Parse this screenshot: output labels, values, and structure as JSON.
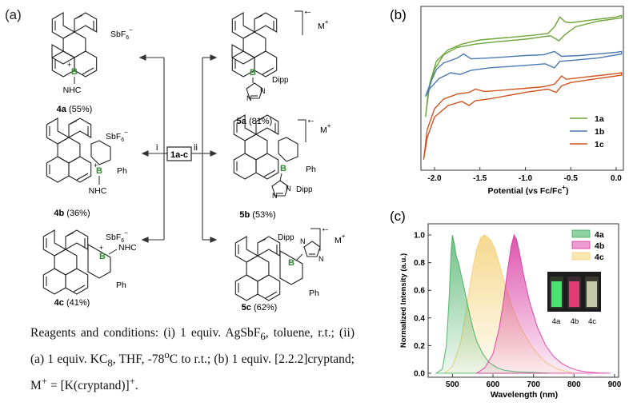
{
  "panel_a": {
    "label": "(a)",
    "center_box": "1a-c",
    "arrow_i": "i",
    "arrow_ii": "ii",
    "compounds": [
      {
        "id": "4a",
        "yield": "(55%)",
        "counterion": "SbF",
        "counterion_sub": "6",
        "counterion_sup": "−",
        "ligand": "NHC"
      },
      {
        "id": "4b",
        "yield": "(36%)",
        "counterion": "SbF",
        "counterion_sub": "6",
        "counterion_sup": "−",
        "ligand": "NHC",
        "substituent": "Ph"
      },
      {
        "id": "4c",
        "yield": "(41%)",
        "counterion": "SbF",
        "counterion_sub": "6",
        "counterion_sup": "−",
        "ligand": "NHC",
        "substituent": "Ph"
      },
      {
        "id": "5a",
        "yield": "(81%)",
        "charge": "•−",
        "cation": "M",
        "cation_sup": "+",
        "ligand": "Dipp"
      },
      {
        "id": "5b",
        "yield": "(53%)",
        "charge": "•−",
        "cation": "M",
        "cation_sup": "+",
        "ligand": "Dipp",
        "substituent": "Ph"
      },
      {
        "id": "5c",
        "yield": "(62%)",
        "charge": "•−",
        "cation": "M",
        "cation_sup": "+",
        "ligand": "Dipp",
        "substituent": "Ph"
      }
    ],
    "atoms": {
      "boron": "B",
      "plus": "+",
      "nitrogen": "N"
    },
    "conditions": {
      "line1": "Reagents and conditions: (i) 1 equiv. AgSbF",
      "line1_sub": "6",
      "line1_end": ",",
      "line2": "toluene, r.t.; (ii) (a) 1 equiv. KC",
      "line2_sub": "8",
      "line2_mid": ", THF, -78",
      "line2_sup": "o",
      "line2_end": "C to r.t.;",
      "line3": "(b) 1 equiv. [2.2.2]cryptand; M",
      "line3_sup": "+",
      "line3_mid": " = [K(cryptand)]",
      "line3_sup2": "+",
      "line3_end": "."
    }
  },
  "panel_b": {
    "label": "(b)"
  },
  "panel_c": {
    "label": "(c)",
    "vial_labels": [
      "4a",
      "4b",
      "4c"
    ]
  },
  "chart_data": [
    {
      "type": "line",
      "panel": "(b)",
      "xlabel": "Potential (vs Fc/Fc",
      "xlabel_sup": "+",
      "xlabel_end": ")",
      "ylabel": "",
      "xlim": [
        -2.15,
        0.08
      ],
      "xticks": [
        -2.0,
        -1.5,
        -1.0,
        -0.5,
        0.0
      ],
      "xtick_labels": [
        "-2.0",
        "-1.5",
        "-1.0",
        "-0.5",
        "0.0"
      ],
      "yticks_shown": false,
      "legend_position": "right",
      "colors": {
        "1a": "#6ea43a",
        "1b": "#4a79b0",
        "1c": "#d1541f"
      },
      "series": [
        {
          "name": "1a",
          "loop": [
            [
              -2.1,
              -0.8
            ],
            [
              -2.05,
              -0.38
            ],
            [
              -1.98,
              -0.12
            ],
            [
              -1.85,
              0.02
            ],
            [
              -1.7,
              0.09
            ],
            [
              -1.5,
              0.14
            ],
            [
              -1.2,
              0.17
            ],
            [
              -0.9,
              0.2
            ],
            [
              -0.75,
              0.22
            ],
            [
              -0.68,
              0.3
            ],
            [
              -0.62,
              0.42
            ],
            [
              -0.56,
              0.36
            ],
            [
              -0.5,
              0.35
            ],
            [
              -0.3,
              0.38
            ],
            [
              0.0,
              0.42
            ],
            [
              0.06,
              0.44
            ],
            [
              0.06,
              0.41
            ],
            [
              -0.2,
              0.37
            ],
            [
              -0.45,
              0.3
            ],
            [
              -0.57,
              0.2
            ],
            [
              -0.63,
              0.13
            ],
            [
              -0.72,
              0.19
            ],
            [
              -0.8,
              0.18
            ],
            [
              -1.0,
              0.15
            ],
            [
              -1.3,
              0.12
            ],
            [
              -1.55,
              0.09
            ],
            [
              -1.75,
              0.05
            ],
            [
              -1.9,
              -0.04
            ],
            [
              -2.0,
              -0.22
            ],
            [
              -2.07,
              -0.5
            ],
            [
              -2.1,
              -0.8
            ]
          ]
        },
        {
          "name": "1b",
          "loop": [
            [
              -2.1,
              -0.55
            ],
            [
              -2.05,
              -0.4
            ],
            [
              -1.98,
              -0.22
            ],
            [
              -1.9,
              -0.14
            ],
            [
              -1.75,
              -0.08
            ],
            [
              -1.68,
              -0.03
            ],
            [
              -1.6,
              -0.09
            ],
            [
              -1.4,
              -0.08
            ],
            [
              -1.0,
              -0.05
            ],
            [
              -0.8,
              -0.04
            ],
            [
              -0.68,
              0.0
            ],
            [
              -0.6,
              -0.06
            ],
            [
              -0.4,
              -0.05
            ],
            [
              0.0,
              -0.01
            ],
            [
              0.06,
              0.0
            ],
            [
              0.06,
              -0.03
            ],
            [
              -0.2,
              -0.08
            ],
            [
              -0.5,
              -0.11
            ],
            [
              -0.62,
              -0.12
            ],
            [
              -0.68,
              -0.2
            ],
            [
              -0.78,
              -0.15
            ],
            [
              -1.0,
              -0.17
            ],
            [
              -1.4,
              -0.2
            ],
            [
              -1.6,
              -0.23
            ],
            [
              -1.72,
              -0.28
            ],
            [
              -1.82,
              -0.26
            ],
            [
              -1.95,
              -0.33
            ],
            [
              -2.05,
              -0.45
            ],
            [
              -2.1,
              -0.55
            ]
          ]
        },
        {
          "name": "1c",
          "loop": [
            [
              -2.12,
              -1.32
            ],
            [
              -2.08,
              -0.95
            ],
            [
              -2.0,
              -0.7
            ],
            [
              -1.9,
              -0.58
            ],
            [
              -1.75,
              -0.52
            ],
            [
              -1.62,
              -0.5
            ],
            [
              -1.55,
              -0.46
            ],
            [
              -1.45,
              -0.49
            ],
            [
              -1.0,
              -0.45
            ],
            [
              -0.8,
              -0.43
            ],
            [
              -0.68,
              -0.4
            ],
            [
              -0.6,
              -0.3
            ],
            [
              -0.55,
              -0.34
            ],
            [
              -0.4,
              -0.32
            ],
            [
              0.0,
              -0.27
            ],
            [
              0.06,
              -0.26
            ],
            [
              0.06,
              -0.29
            ],
            [
              -0.2,
              -0.33
            ],
            [
              -0.5,
              -0.38
            ],
            [
              -0.6,
              -0.42
            ],
            [
              -0.66,
              -0.5
            ],
            [
              -0.75,
              -0.46
            ],
            [
              -1.0,
              -0.5
            ],
            [
              -1.4,
              -0.58
            ],
            [
              -1.55,
              -0.6
            ],
            [
              -1.62,
              -0.66
            ],
            [
              -1.7,
              -0.61
            ],
            [
              -1.85,
              -0.66
            ],
            [
              -2.0,
              -0.8
            ],
            [
              -2.08,
              -1.05
            ],
            [
              -2.12,
              -1.32
            ]
          ]
        }
      ]
    },
    {
      "type": "area",
      "panel": "(c)",
      "xlabel": "Wavelength (nm)",
      "ylabel": "Normalized Intensity (a.u.)",
      "xlim": [
        440,
        910
      ],
      "ylim": [
        0.0,
        1.05
      ],
      "xticks": [
        500,
        600,
        700,
        800,
        900
      ],
      "yticks": [
        0.0,
        0.2,
        0.4,
        0.6,
        0.8,
        1.0
      ],
      "ytick_labels": [
        "0.0",
        "0.2",
        "0.4",
        "0.6",
        "0.8",
        "1.0"
      ],
      "legend_position": "top-right",
      "series": [
        {
          "name": "4a",
          "color": "#3cab5a",
          "x": [
            460,
            475,
            485,
            492,
            497,
            500,
            505,
            510,
            515,
            520,
            530,
            540,
            550,
            560,
            575,
            590,
            610,
            630,
            660,
            700,
            740
          ],
          "y": [
            0,
            0.03,
            0.2,
            0.55,
            0.9,
            1.0,
            0.93,
            0.84,
            0.8,
            0.73,
            0.6,
            0.46,
            0.33,
            0.23,
            0.14,
            0.08,
            0.04,
            0.02,
            0.01,
            0.005,
            0
          ]
        },
        {
          "name": "4b",
          "color": "#d8359f",
          "x": [
            560,
            580,
            600,
            615,
            625,
            635,
            645,
            652,
            658,
            665,
            675,
            690,
            710,
            730,
            750,
            770,
            790,
            810,
            830,
            860,
            890
          ],
          "y": [
            0,
            0.04,
            0.14,
            0.32,
            0.5,
            0.72,
            0.92,
            1.0,
            0.97,
            0.88,
            0.72,
            0.52,
            0.33,
            0.2,
            0.12,
            0.07,
            0.04,
            0.02,
            0.01,
            0.003,
            0
          ]
        },
        {
          "name": "4c",
          "color": "#f4d27a",
          "x": [
            480,
            500,
            520,
            535,
            550,
            560,
            570,
            578,
            585,
            595,
            605,
            615,
            630,
            650,
            670,
            690,
            710,
            730,
            760,
            800
          ],
          "y": [
            0,
            0.05,
            0.22,
            0.48,
            0.76,
            0.9,
            0.98,
            1.0,
            0.99,
            0.96,
            0.9,
            0.8,
            0.64,
            0.46,
            0.32,
            0.22,
            0.14,
            0.08,
            0.03,
            0
          ]
        }
      ]
    }
  ]
}
